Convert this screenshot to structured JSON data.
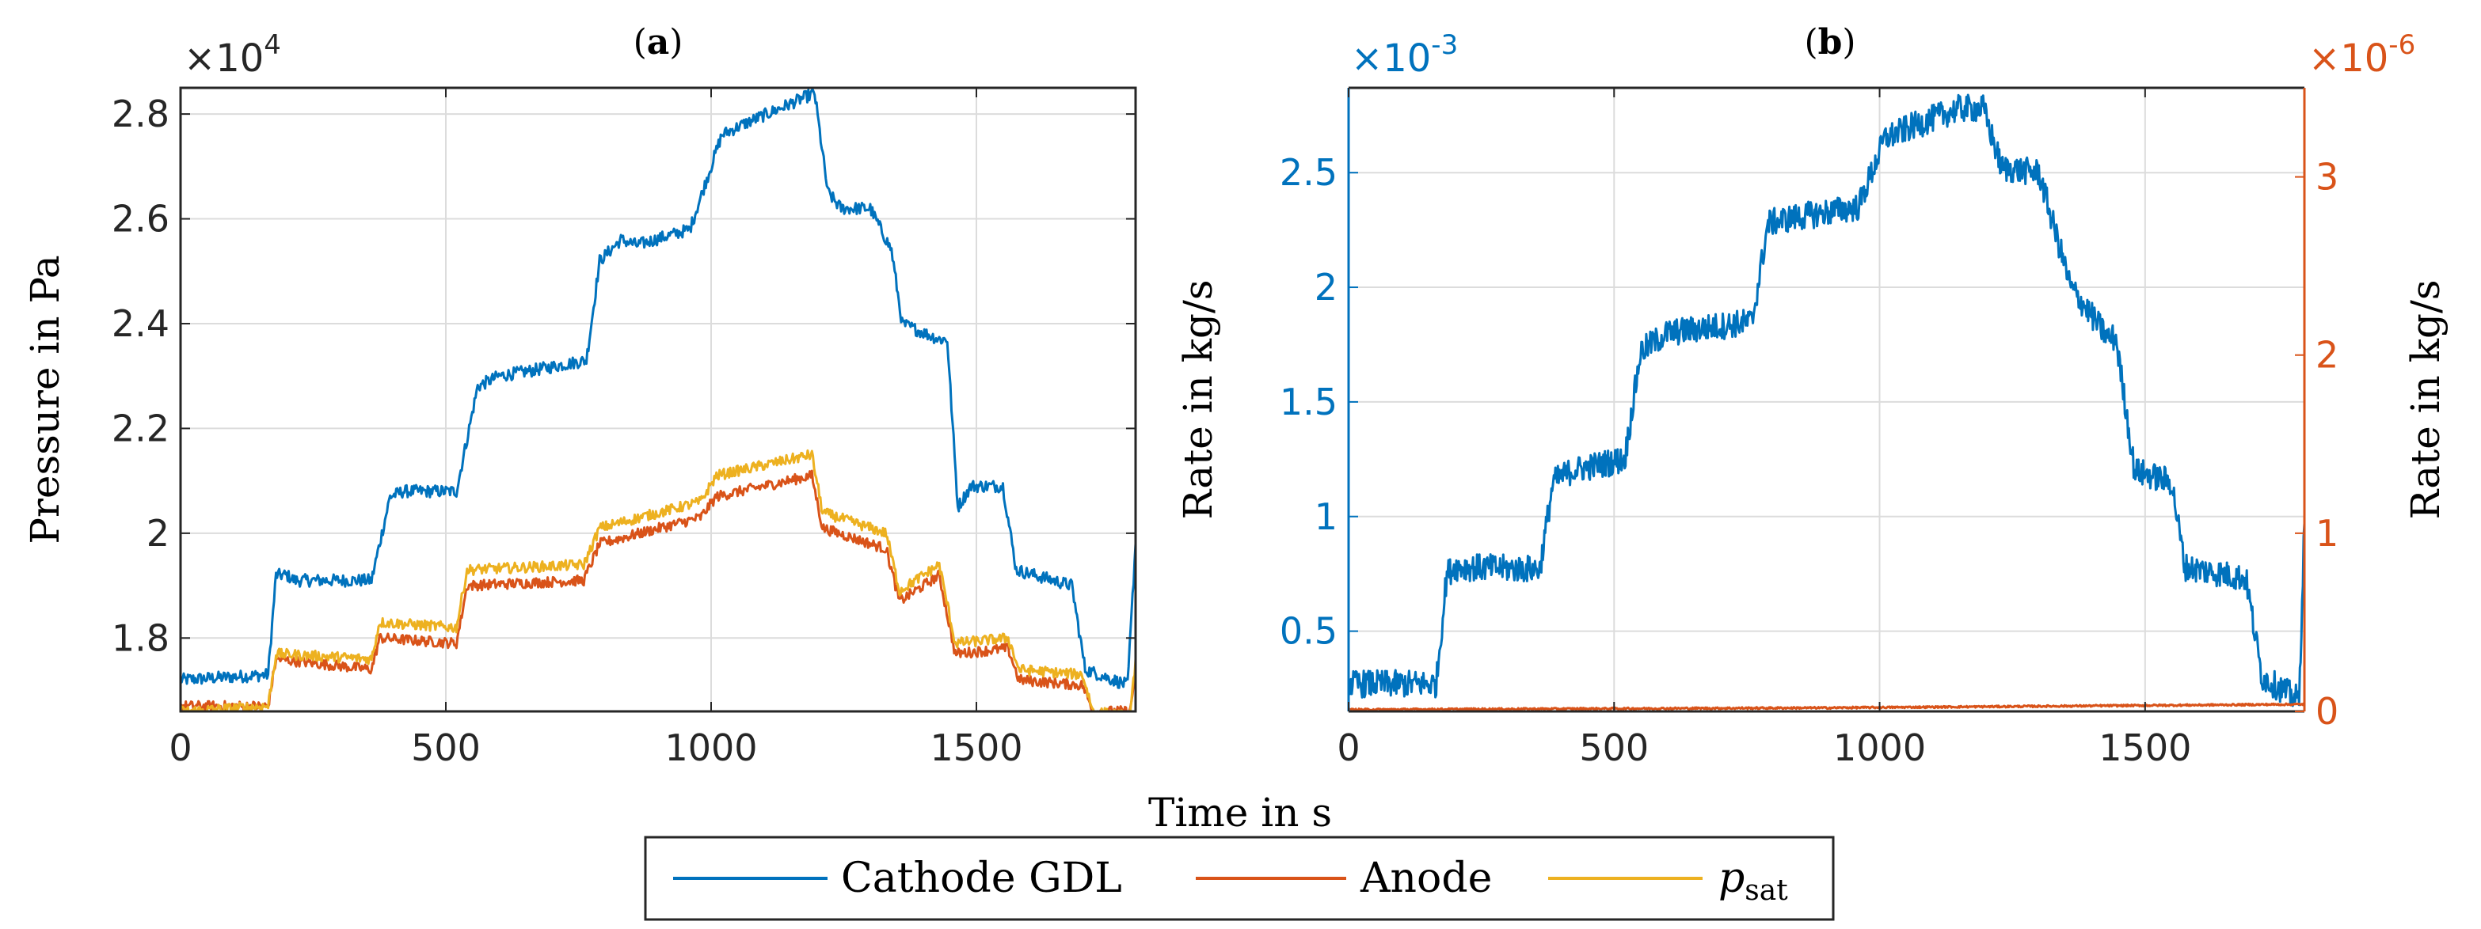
{
  "colors": {
    "cathode": "#0072BD",
    "anode": "#D95319",
    "psat": "#EDB120",
    "grid": "#dcdcdc",
    "axis": "#262626"
  },
  "legend": {
    "entries": [
      "Cathode GDL",
      "Anode",
      "p",
      "sat"
    ]
  },
  "chart_data": [
    {
      "type": "line",
      "panel": "(a)",
      "title_bold": "a",
      "title_open": "(",
      "title_close": ")",
      "xlabel": "Time in s",
      "ylabel": "Pressure in Pa",
      "exponent_base": "×10",
      "exponent_power": "4",
      "xlim": [
        0,
        1800
      ],
      "ylim": [
        1.66,
        2.85
      ],
      "xticks": [
        0,
        500,
        1000,
        1500
      ],
      "yticks": [
        1.8,
        2.0,
        2.2,
        2.4,
        2.6,
        2.8
      ],
      "ytick_labels": [
        "1.8",
        "2",
        "2.2",
        "2.4",
        "2.6",
        "2.8"
      ],
      "xtick_labels": [
        "0",
        "500",
        "1000",
        "1500"
      ],
      "series": [
        {
          "name": "Cathode GDL",
          "noise": 0.012,
          "points": [
            [
              0,
              1.72
            ],
            [
              165,
              1.73
            ],
            [
              180,
              1.92
            ],
            [
              200,
              1.92
            ],
            [
              215,
              1.91
            ],
            [
              360,
              1.91
            ],
            [
              395,
              2.07
            ],
            [
              420,
              2.08
            ],
            [
              520,
              2.08
            ],
            [
              560,
              2.28
            ],
            [
              600,
              2.3
            ],
            [
              660,
              2.31
            ],
            [
              765,
              2.33
            ],
            [
              790,
              2.52
            ],
            [
              830,
              2.56
            ],
            [
              860,
              2.55
            ],
            [
              960,
              2.58
            ],
            [
              1020,
              2.76
            ],
            [
              1060,
              2.78
            ],
            [
              1150,
              2.82
            ],
            [
              1195,
              2.84
            ],
            [
              1220,
              2.65
            ],
            [
              1245,
              2.62
            ],
            [
              1300,
              2.62
            ],
            [
              1340,
              2.54
            ],
            [
              1360,
              2.4
            ],
            [
              1430,
              2.37
            ],
            [
              1445,
              2.37
            ],
            [
              1465,
              2.05
            ],
            [
              1490,
              2.09
            ],
            [
              1550,
              2.09
            ],
            [
              1575,
              1.93
            ],
            [
              1680,
              1.9
            ],
            [
              1705,
              1.74
            ],
            [
              1785,
              1.71
            ],
            [
              1800,
              1.98
            ]
          ]
        },
        {
          "name": "Anode",
          "noise": 0.01,
          "points": [
            [
              0,
              1.67
            ],
            [
              165,
              1.67
            ],
            [
              180,
              1.76
            ],
            [
              360,
              1.74
            ],
            [
              375,
              1.8
            ],
            [
              520,
              1.79
            ],
            [
              540,
              1.9
            ],
            [
              760,
              1.91
            ],
            [
              790,
              1.98
            ],
            [
              980,
              2.03
            ],
            [
              1010,
              2.07
            ],
            [
              1190,
              2.11
            ],
            [
              1210,
              2.01
            ],
            [
              1330,
              1.97
            ],
            [
              1355,
              1.87
            ],
            [
              1430,
              1.92
            ],
            [
              1460,
              1.77
            ],
            [
              1560,
              1.78
            ],
            [
              1580,
              1.72
            ],
            [
              1700,
              1.71
            ],
            [
              1720,
              1.66
            ],
            [
              1790,
              1.66
            ],
            [
              1800,
              1.74
            ]
          ]
        },
        {
          "name": "p_sat",
          "noise": 0.01,
          "points": [
            [
              0,
              1.66
            ],
            [
              165,
              1.67
            ],
            [
              180,
              1.77
            ],
            [
              360,
              1.76
            ],
            [
              375,
              1.83
            ],
            [
              520,
              1.82
            ],
            [
              540,
              1.93
            ],
            [
              760,
              1.94
            ],
            [
              790,
              2.01
            ],
            [
              980,
              2.06
            ],
            [
              1010,
              2.11
            ],
            [
              1190,
              2.15
            ],
            [
              1210,
              2.04
            ],
            [
              1330,
              2.0
            ],
            [
              1355,
              1.89
            ],
            [
              1430,
              1.94
            ],
            [
              1460,
              1.79
            ],
            [
              1560,
              1.8
            ],
            [
              1580,
              1.74
            ],
            [
              1700,
              1.73
            ],
            [
              1720,
              1.66
            ],
            [
              1790,
              1.65
            ],
            [
              1800,
              1.76
            ]
          ]
        }
      ]
    },
    {
      "type": "line",
      "panel": "(b)",
      "title_bold": "b",
      "title_open": "(",
      "title_close": ")",
      "xlabel": "",
      "ylabel_left": "Rate in kg/s",
      "ylabel_right": "Rate in kg/s",
      "left_exponent_base": "×10",
      "left_exponent_power": "-3",
      "right_exponent_base": "×10",
      "right_exponent_power": "-6",
      "xlim": [
        0,
        1800
      ],
      "ylim_left": [
        0.15,
        2.87
      ],
      "ylim_right": [
        0,
        3.5
      ],
      "xticks": [
        0,
        500,
        1000,
        1500
      ],
      "xtick_labels": [
        "0",
        "500",
        "1000",
        "1500"
      ],
      "yticks_left": [
        0.5,
        1.0,
        1.5,
        2.0,
        2.5
      ],
      "ytick_labels_left": [
        "0.5",
        "1",
        "1.5",
        "2",
        "2.5"
      ],
      "yticks_right": [
        0,
        1,
        2,
        3
      ],
      "ytick_labels_right": [
        "0",
        "1",
        "2",
        "3"
      ],
      "series": [
        {
          "name": "Cathode GDL",
          "axis": "left",
          "noise": 0.06,
          "points": [
            [
              0,
              0.27
            ],
            [
              165,
              0.27
            ],
            [
              185,
              0.75
            ],
            [
              200,
              0.78
            ],
            [
              360,
              0.77
            ],
            [
              385,
              1.15
            ],
            [
              420,
              1.2
            ],
            [
              520,
              1.25
            ],
            [
              550,
              1.72
            ],
            [
              600,
              1.8
            ],
            [
              760,
              1.85
            ],
            [
              790,
              2.28
            ],
            [
              830,
              2.3
            ],
            [
              960,
              2.35
            ],
            [
              1010,
              2.65
            ],
            [
              1060,
              2.7
            ],
            [
              1150,
              2.78
            ],
            [
              1195,
              2.78
            ],
            [
              1230,
              2.52
            ],
            [
              1300,
              2.5
            ],
            [
              1330,
              2.25
            ],
            [
              1360,
              2.0
            ],
            [
              1430,
              1.78
            ],
            [
              1445,
              1.78
            ],
            [
              1480,
              1.2
            ],
            [
              1550,
              1.15
            ],
            [
              1575,
              0.78
            ],
            [
              1690,
              0.73
            ],
            [
              1720,
              0.3
            ],
            [
              1790,
              0.2
            ],
            [
              1800,
              0.97
            ]
          ]
        },
        {
          "name": "Anode",
          "axis": "right",
          "noise": 0.005,
          "points": [
            [
              0,
              0.01
            ],
            [
              900,
              0.02
            ],
            [
              1800,
              0.04
            ]
          ]
        }
      ]
    }
  ]
}
